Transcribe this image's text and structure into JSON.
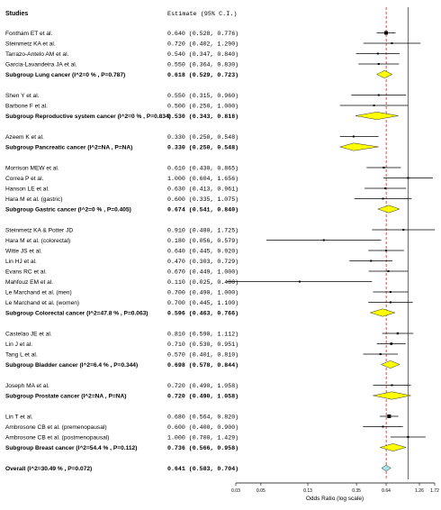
{
  "chart_data": {
    "type": "forest",
    "xscale": "log",
    "xlabel": "Odds Ratio (log scale)",
    "xlim": [
      0.03,
      1.72
    ],
    "xticks": [
      {
        "value": 0.03,
        "label": "0.03"
      },
      {
        "value": 0.05,
        "label": "0.05"
      },
      {
        "value": 0.13,
        "label": "0.13"
      },
      {
        "value": 0.35,
        "label": "0.35"
      },
      {
        "value": 0.64,
        "label": "0.64"
      },
      {
        "value": 1.26,
        "label": "1.26"
      },
      {
        "value": 1.72,
        "label": "1.72"
      }
    ],
    "reference_line": 1.0,
    "overall_line": 0.641,
    "header": {
      "studies": "Studies",
      "estimate": "Estimate (95% C.I.)"
    },
    "colors": {
      "study": "#000000",
      "subgroup": "#ffff00",
      "overall": "#a6e3e8",
      "overall_line": "#cc2222"
    },
    "rows": [
      {
        "row": 1,
        "kind": "study",
        "label": "Fontham ET et al.",
        "est": 0.64,
        "lo": 0.528,
        "hi": 0.776,
        "text": "0.640 (0.528, 0.776)"
      },
      {
        "row": 2,
        "kind": "study",
        "label": "Steinmetz KA et al.",
        "est": 0.72,
        "lo": 0.402,
        "hi": 1.29,
        "text": "0.720 (0.402, 1.290)"
      },
      {
        "row": 3,
        "kind": "study",
        "label": "Tarrazo-Antelo AM et al.",
        "est": 0.54,
        "lo": 0.347,
        "hi": 0.84,
        "text": "0.540 (0.347, 0.840)"
      },
      {
        "row": 4,
        "kind": "study",
        "label": "Garcia-Lavandeira JA et al.",
        "est": 0.55,
        "lo": 0.364,
        "hi": 0.83,
        "text": "0.550 (0.364, 0.830)"
      },
      {
        "row": 5,
        "kind": "subgroup",
        "label": "Subgroup Lung cancer (I^2=0 % , P=0.787)",
        "est": 0.618,
        "lo": 0.529,
        "hi": 0.723,
        "text": "0.618 (0.529, 0.723)"
      },
      {
        "row": 7,
        "kind": "study",
        "label": "Shen Y et al.",
        "est": 0.55,
        "lo": 0.315,
        "hi": 0.96,
        "text": "0.550 (0.315, 0.960)"
      },
      {
        "row": 8,
        "kind": "study",
        "label": "Barbone F et al.",
        "est": 0.5,
        "lo": 0.25,
        "hi": 1.0,
        "text": "0.500 (0.250, 1.000)"
      },
      {
        "row": 9,
        "kind": "subgroup",
        "label": "Subgroup Reproductive system cancer (I^2=0 % , P=0.834)",
        "est": 0.53,
        "lo": 0.343,
        "hi": 0.818,
        "text": "0.530 (0.343, 0.818)"
      },
      {
        "row": 11,
        "kind": "study",
        "label": "Azeem K et al.",
        "est": 0.33,
        "lo": 0.25,
        "hi": 0.548,
        "text": "0.330 (0.250, 0.548)"
      },
      {
        "row": 12,
        "kind": "subgroup",
        "label": "Subgroup Pancreatic cancer (I^2=NA , P=NA)",
        "est": 0.33,
        "lo": 0.25,
        "hi": 0.548,
        "text": "0.330 (0.250, 0.548)"
      },
      {
        "row": 14,
        "kind": "study",
        "label": "Morrison MEW et al.",
        "est": 0.61,
        "lo": 0.43,
        "hi": 0.865,
        "text": "0.610 (0.430, 0.865)"
      },
      {
        "row": 15,
        "kind": "study",
        "label": "Correa P et al.",
        "est": 1.0,
        "lo": 0.604,
        "hi": 1.656,
        "text": "1.000 (0.604, 1.656)"
      },
      {
        "row": 16,
        "kind": "study",
        "label": "Hanson LE et al.",
        "est": 0.63,
        "lo": 0.413,
        "hi": 0.961,
        "text": "0.630 (0.413, 0.961)"
      },
      {
        "row": 17,
        "kind": "study",
        "label": "Hara M et al. (gastric)",
        "est": 0.6,
        "lo": 0.335,
        "hi": 1.075,
        "text": "0.600 (0.335, 1.075)"
      },
      {
        "row": 18,
        "kind": "subgroup",
        "label": "Subgroup Gastric cancer (I^2=0 % , P=0.405)",
        "est": 0.674,
        "lo": 0.541,
        "hi": 0.84,
        "text": "0.674 (0.541, 0.840)"
      },
      {
        "row": 20,
        "kind": "study",
        "label": "Steinmetz KA & Potter JD",
        "est": 0.91,
        "lo": 0.48,
        "hi": 1.725,
        "text": "0.910 (0.480, 1.725)"
      },
      {
        "row": 21,
        "kind": "study",
        "label": "Hara M et al. (colorectal)",
        "est": 0.18,
        "lo": 0.056,
        "hi": 0.579,
        "text": "0.180 (0.056, 0.579)"
      },
      {
        "row": 22,
        "kind": "study",
        "label": "Witte JS et al.",
        "est": 0.64,
        "lo": 0.445,
        "hi": 0.92,
        "text": "0.640 (0.445, 0.920)"
      },
      {
        "row": 23,
        "kind": "study",
        "label": "Lin HJ et al.",
        "est": 0.47,
        "lo": 0.303,
        "hi": 0.729,
        "text": "0.470 (0.303, 0.729)"
      },
      {
        "row": 24,
        "kind": "study",
        "label": "Evans RC et al.",
        "est": 0.67,
        "lo": 0.449,
        "hi": 1.0,
        "text": "0.670 (0.449, 1.000)"
      },
      {
        "row": 25,
        "kind": "study",
        "label": "Mahfouz EM et al.",
        "est": 0.11,
        "lo": 0.025,
        "hi": 0.48,
        "text": "0.110 (0.025, 0.480)"
      },
      {
        "row": 26,
        "kind": "study",
        "label": "Le Marchand et al. (men)",
        "est": 0.7,
        "lo": 0.49,
        "hi": 1.0,
        "text": "0.700 (0.490, 1.000)"
      },
      {
        "row": 27,
        "kind": "study",
        "label": "Le Marchand et al. (women)",
        "est": 0.7,
        "lo": 0.445,
        "hi": 1.1,
        "text": "0.700 (0.445, 1.100)"
      },
      {
        "row": 28,
        "kind": "subgroup",
        "label": "Subgroup Colorectal cancer (I^2=47.8 % , P=0.063)",
        "est": 0.596,
        "lo": 0.463,
        "hi": 0.766,
        "text": "0.596 (0.463, 0.766)"
      },
      {
        "row": 30,
        "kind": "study",
        "label": "Castelao JE et al.",
        "est": 0.81,
        "lo": 0.59,
        "hi": 1.112,
        "text": "0.810 (0.590, 1.112)"
      },
      {
        "row": 31,
        "kind": "study",
        "label": "Lin J et al.",
        "est": 0.71,
        "lo": 0.53,
        "hi": 0.951,
        "text": "0.710 (0.530, 0.951)"
      },
      {
        "row": 32,
        "kind": "study",
        "label": "Tang L et al.",
        "est": 0.57,
        "lo": 0.401,
        "hi": 0.81,
        "text": "0.570 (0.401, 0.810)"
      },
      {
        "row": 33,
        "kind": "subgroup",
        "label": "Subgroup Bladder cancer (I^2=6.4 % , P=0.344)",
        "est": 0.698,
        "lo": 0.578,
        "hi": 0.844,
        "text": "0.698 (0.578, 0.844)"
      },
      {
        "row": 35,
        "kind": "study",
        "label": "Joseph MA et al.",
        "est": 0.72,
        "lo": 0.49,
        "hi": 1.058,
        "text": "0.720 (0.490, 1.058)"
      },
      {
        "row": 36,
        "kind": "subgroup",
        "label": "Subgroup Prostate cancer (I^2=NA , P=NA)",
        "est": 0.72,
        "lo": 0.49,
        "hi": 1.058,
        "text": "0.720 (0.490, 1.058)"
      },
      {
        "row": 38,
        "kind": "study",
        "label": "Lin T et al.",
        "est": 0.68,
        "lo": 0.564,
        "hi": 0.82,
        "text": "0.680 (0.564, 0.820)"
      },
      {
        "row": 39,
        "kind": "study",
        "label": "Ambrosone CB et al. (premenopausal)",
        "est": 0.6,
        "lo": 0.4,
        "hi": 0.9,
        "text": "0.600 (0.400, 0.900)"
      },
      {
        "row": 40,
        "kind": "study",
        "label": "Ambrosone CB et al. (postmenopausal)",
        "est": 1.0,
        "lo": 0.7,
        "hi": 1.429,
        "text": "1.000 (0.700, 1.429)"
      },
      {
        "row": 41,
        "kind": "subgroup",
        "label": "Subgroup Breast cancer (I^2=54.4 % , P=0.112)",
        "est": 0.736,
        "lo": 0.566,
        "hi": 0.958,
        "text": "0.736 (0.566, 0.958)"
      },
      {
        "row": 43,
        "kind": "overall",
        "label": "Overall (I^2=30.49 % , P=0.072)",
        "est": 0.641,
        "lo": 0.583,
        "hi": 0.704,
        "text": "0.641 (0.583, 0.704)"
      }
    ]
  }
}
